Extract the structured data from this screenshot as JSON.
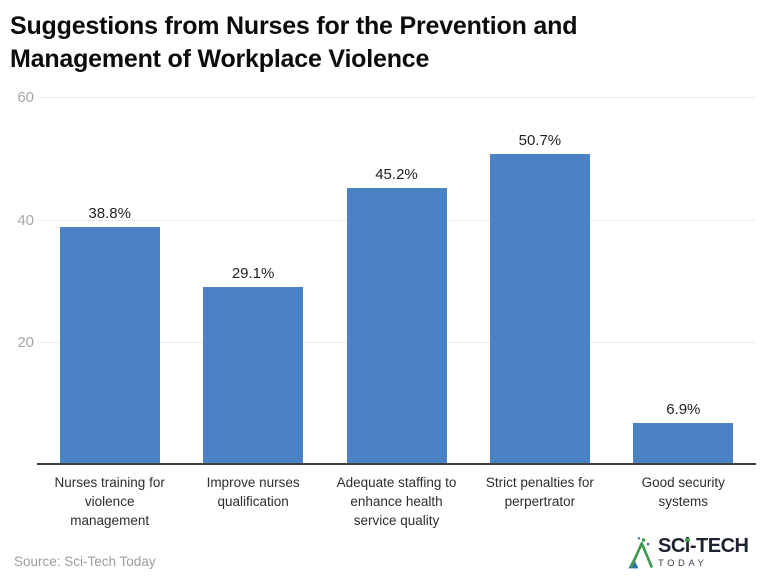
{
  "chart_data": {
    "type": "bar",
    "title": "Suggestions from Nurses for the Prevention and Management of Workplace Violence",
    "categories": [
      "Nurses training for violence management",
      "Improve nurses qualification",
      "Adequate staffing to enhance health service quality",
      "Strict penalties for perpertrator",
      "Good security systems"
    ],
    "values": [
      38.8,
      29.1,
      45.2,
      50.7,
      6.9
    ],
    "value_labels": [
      "38.8%",
      "29.1%",
      "45.2%",
      "50.7%",
      "6.9%"
    ],
    "xlabel": "",
    "ylabel": "",
    "ylim": [
      0,
      60
    ],
    "yticks": [
      20,
      40,
      60
    ],
    "grid": "horizontal-dotted",
    "legend": "none",
    "bar_color": "#4a82c4",
    "gridline_color": "#d9d9d9",
    "axis_line_color": "#3f3f3f"
  },
  "footer": {
    "source": "Source: Sci-Tech Today",
    "logo": {
      "brand_part1": "SC",
      "brand_part2": "i",
      "brand_part3": "-TECH",
      "brand_sub": "TODAY",
      "icon": "mountain-logo-icon",
      "accent_green": "#3d9a4e",
      "accent_blue": "#2e6cb5"
    }
  }
}
